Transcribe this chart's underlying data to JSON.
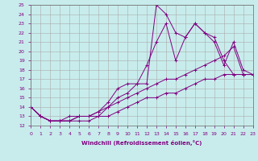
{
  "xlabel": "Windchill (Refroidissement éolien,°C)",
  "background_color": "#c8ecec",
  "line_color": "#800080",
  "grid_color": "#aaaaaa",
  "x_ticks": [
    0,
    1,
    2,
    3,
    4,
    5,
    6,
    7,
    8,
    9,
    10,
    11,
    12,
    13,
    14,
    15,
    16,
    17,
    18,
    19,
    20,
    21,
    22,
    23
  ],
  "ylim": [
    12,
    25
  ],
  "xlim": [
    0,
    23
  ],
  "y_ticks": [
    12,
    13,
    14,
    15,
    16,
    17,
    18,
    19,
    20,
    21,
    22,
    23,
    24,
    25
  ],
  "series": [
    [
      14.0,
      13.0,
      12.5,
      12.5,
      12.5,
      13.0,
      13.0,
      13.5,
      14.5,
      16.0,
      16.5,
      16.5,
      18.5,
      21.0,
      23.0,
      19.0,
      21.5,
      23.0,
      22.0,
      21.0,
      18.5,
      21.0,
      18.0,
      17.5
    ],
    [
      14.0,
      13.0,
      12.5,
      12.5,
      13.0,
      13.0,
      13.0,
      13.0,
      14.0,
      15.0,
      15.5,
      16.5,
      16.5,
      25.0,
      24.0,
      22.0,
      21.5,
      23.0,
      22.0,
      21.5,
      19.0,
      17.5,
      17.5,
      17.5
    ],
    [
      14.0,
      13.0,
      12.5,
      12.5,
      12.5,
      13.0,
      13.0,
      13.5,
      14.0,
      14.5,
      15.0,
      15.5,
      16.0,
      16.5,
      17.0,
      17.0,
      17.5,
      18.0,
      18.5,
      19.0,
      19.5,
      20.5,
      17.5,
      17.5
    ],
    [
      14.0,
      13.0,
      12.5,
      12.5,
      12.5,
      12.5,
      12.5,
      13.0,
      13.0,
      13.5,
      14.0,
      14.5,
      15.0,
      15.0,
      15.5,
      15.5,
      16.0,
      16.5,
      17.0,
      17.0,
      17.5,
      17.5,
      17.5,
      17.5
    ]
  ]
}
